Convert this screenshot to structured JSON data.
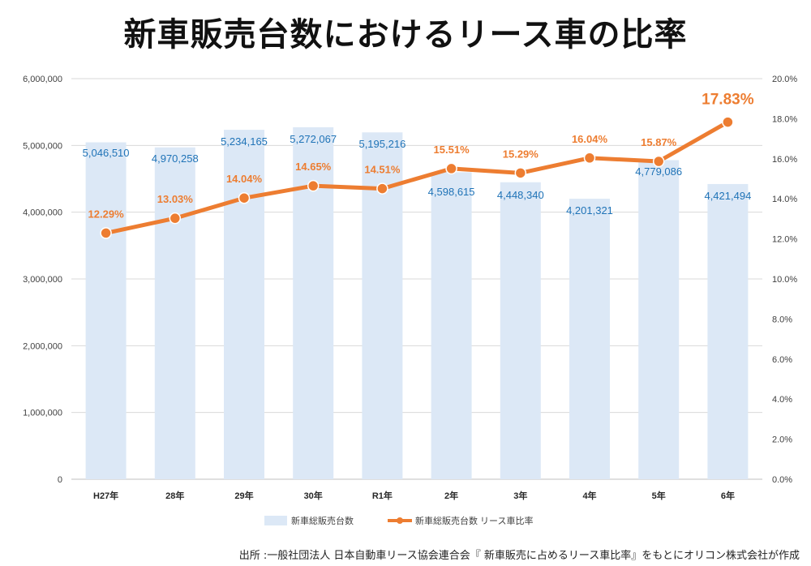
{
  "title": "新車販売台数におけるリース車の比率",
  "source": "出所 :一般社団法人 日本自動車リース協会連合会『 新車販売に占めるリース車比率』をもとにオリコン株式会社が作成",
  "colors": {
    "bar": "#dce8f6",
    "bar_label": "#1f73b7",
    "line": "#ed7d31",
    "grid": "#d9d9d9",
    "axis_text": "#404040"
  },
  "chart_data": {
    "type": "bar+line",
    "title": "新車販売台数におけるリース車の比率",
    "categories": [
      "H27年",
      "28年",
      "29年",
      "30年",
      "R1年",
      "2年",
      "3年",
      "4年",
      "5年",
      "6年"
    ],
    "series": [
      {
        "name": "新車総販売台数",
        "type": "bar",
        "axis": "left",
        "values": [
          5046510,
          4970258,
          5234165,
          5272067,
          5195216,
          4598615,
          4448340,
          4201321,
          4779086,
          4421494
        ],
        "labels": [
          "5,046,510",
          "4,970,258",
          "5,234,165",
          "5,272,067",
          "5,195,216",
          "4,598,615",
          "4,448,340",
          "4,201,321",
          "4,779,086",
          "4,421,494"
        ]
      },
      {
        "name": "新車総販売台数 リース車比率",
        "type": "line",
        "axis": "right",
        "values": [
          12.29,
          13.03,
          14.04,
          14.65,
          14.51,
          15.51,
          15.29,
          16.04,
          15.87,
          17.83
        ],
        "labels": [
          "12.29%",
          "13.03%",
          "14.04%",
          "14.65%",
          "14.51%",
          "15.51%",
          "15.29%",
          "16.04%",
          "15.87%",
          "17.83%"
        ]
      }
    ],
    "y_left": {
      "min": 0,
      "max": 6000000,
      "ticks": [
        "0",
        "1,000,000",
        "2,000,000",
        "3,000,000",
        "4,000,000",
        "5,000,000",
        "6,000,000"
      ]
    },
    "y_right": {
      "min": 0,
      "max": 20,
      "ticks": [
        "0.0%",
        "2.0%",
        "4.0%",
        "6.0%",
        "8.0%",
        "10.0%",
        "12.0%",
        "14.0%",
        "16.0%",
        "18.0%",
        "20.0%"
      ]
    },
    "legend": [
      "新車総販売台数",
      "新車総販売台数 リース車比率"
    ],
    "legend_position": "bottom",
    "grid": true
  }
}
